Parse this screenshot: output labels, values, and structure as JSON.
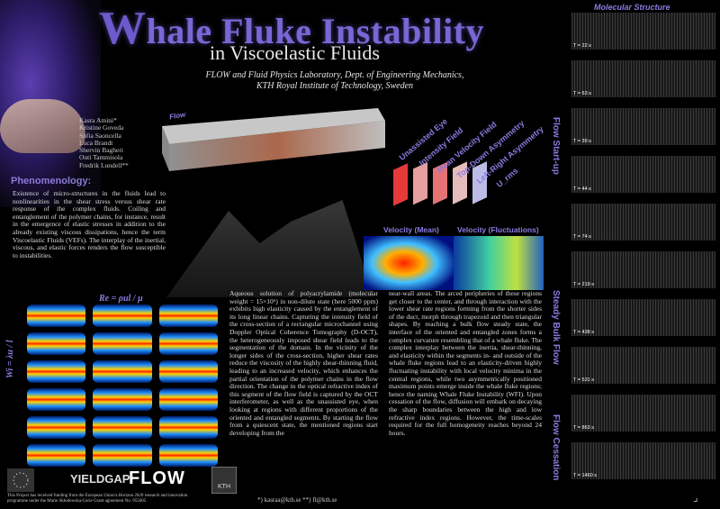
{
  "title": {
    "first_letter": "W",
    "rest": "hale Fluke Instability",
    "subtitle": "in Viscoelastic Fluids"
  },
  "affiliation": {
    "line1": "FLOW and Fluid Physics Laboratory, Dept. of Engineering Mechanics,",
    "line2": "KTH Royal Institute of Technology, Sweden"
  },
  "authors": [
    "Kasra Amini*",
    "Kristine Goveda",
    "Sofia Saoncella",
    "Luca Brandt",
    "Shervin Bagheri",
    "Outi Tammisola",
    "Fredrik Lundell**"
  ],
  "phenomenology": {
    "heading": "Phenomenology:",
    "text": "Existence of micro-structures in the fluids lead to nonlinearities in the shear stress versus shear rate response of the complex fluids. Coiling and entanglement of the polymer chains, for instance, result in the emergence of elastic stresses in addition to the already existing viscous dissipations, hence the term Viscoelastic Fluids (VEFs). The interplay of the inertial, viscous, and elastic forces renders the flow susceptible to instabilities."
  },
  "diagram_labels": {
    "flow": "Flow",
    "unassisted_eye": "Unassisted Eye",
    "intensity_field": "Intensity Field",
    "mean_velocity_field": "Mean Velocity Field",
    "top_down_asymmetry": "Top-Down Asymmetry",
    "left_right_asymmetry": "Left-Right Asymmetry",
    "u_rms": "U_rms",
    "velocity_mean": "Velocity (Mean)",
    "velocity_fluctuations": "Velocity (Fluctuations)"
  },
  "grid_labels": {
    "re": "Re = ρul / μ",
    "wi": "Wi = λu / l"
  },
  "body": {
    "col1": "Aqueous solution of polyacrylamide (molecular weight = 15×10⁶) in non-dilute state (here 5000 ppm) exhibits high elasticity caused by the entanglement of its long linear chains. Capturing the intensity field of the cross-section of a rectangular microchannel using Doppler Optical Coherence Tomography (D-OCT), the heterogeneously imposed shear field leads to the segmentation of the domain. In the vicinity of the longer sides of the cross-section, higher shear rates reduce the viscosity of the highly shear-thinning fluid, leading to an increased velocity, which enhances the partial orientation of the polymer chains in the flow direction. The change in the optical refractive index of this segment of the flow field is captured by the OCT interferometer, as well as the unassisted eye, when looking at regions with different proportions of the oriented and entangled segments. By starting the flow from a quiescent state, the mentioned regions start developing from the",
    "col2": "near-wall areas. The arced peripheries of these regions get closer to the center, and through interaction with the lower shear rate regions forming from the shorter sides of the duct, morph through trapezoid and then triangular shapes. By reaching a bulk flow steady state, the interface of the oriented and entangled zones forms a complex curvature resembling that of a whale fluke. The complex interplay between the inertia, shear-thinning, and elasticity within the segments in- and outside of the whale fluke regions lead to an elasticity-driven highly fluctuating instability with local velocity minima in the central regions, while two asymmetrically positioned maximum points emerge inside the whale fluke regions; hence the naming Whale Fluke Instability (WFI). Upon cessation of the flow, diffusion will embark on decaying the sharp boundaries between the high and low refractive index regions. However, the time-scales required for the full homogeneity reaches beyond 24 hours."
  },
  "funding": "This Project has received funding from the European Union's Horizon 2020 research and innovation programme under the Marie Skłodowska-Curie Grant agreement No. 955605",
  "logos": {
    "yieldgap": "YIELDGAP",
    "flow": "FLOW",
    "kth": "KTH"
  },
  "emails": "*) kasraa@kth.se   **) fl@kth.se",
  "molecular": {
    "title": "Molecular Structure",
    "phase_labels": [
      "Flow Start-up",
      "Steady Bulk Flow",
      "Flow Cessation"
    ],
    "times": [
      "T = 22 s",
      "T = 63 s",
      "T = 39 s",
      "T = 44 s",
      "T = 74 s",
      "T = 219 s",
      "T = 438 s",
      "T = 531 s",
      "T = 863 s",
      "T = 1460 s"
    ]
  },
  "colors": {
    "accent": "#8c7be0",
    "title": "#7a66d4",
    "background": "#000000"
  }
}
